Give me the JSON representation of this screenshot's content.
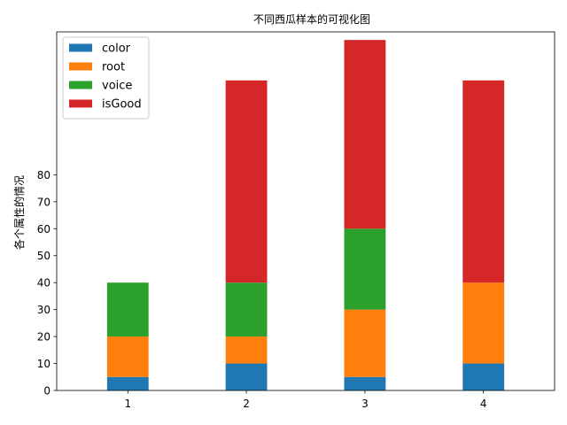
{
  "chart_data": {
    "type": "bar",
    "stacked": true,
    "title": "不同西瓜样本的可视化图",
    "xlabel": "",
    "ylabel": "各个属性的情况",
    "categories": [
      "1",
      "2",
      "3",
      "4"
    ],
    "ylim": [
      0,
      133
    ],
    "yticks": [
      0,
      10,
      20,
      30,
      40,
      50,
      60,
      70,
      80
    ],
    "grid": false,
    "legend_position": "top-left",
    "series": [
      {
        "name": "color",
        "color": "#1f77b4",
        "values": [
          5,
          10,
          5,
          10
        ]
      },
      {
        "name": "root",
        "color": "#ff7f0e",
        "values": [
          15,
          10,
          25,
          30
        ]
      },
      {
        "name": "voice",
        "color": "#2ca02c",
        "values": [
          20,
          20,
          30,
          0
        ]
      },
      {
        "name": "isGood",
        "color": "#d62728",
        "values": [
          0,
          75,
          70,
          75
        ]
      }
    ]
  }
}
